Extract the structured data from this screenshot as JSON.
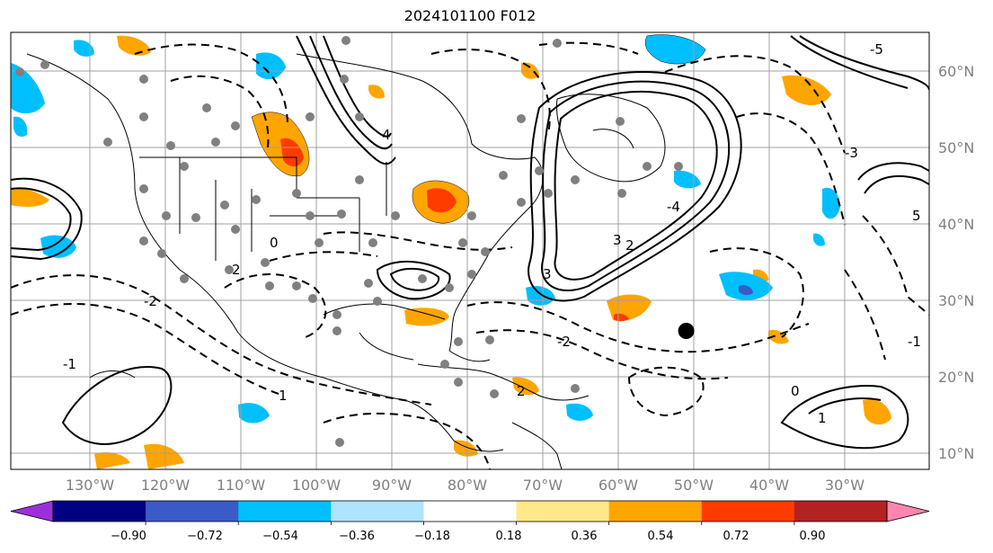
{
  "title": "2024101100 F012",
  "lon_labels": [
    "130°W",
    "120°W",
    "110°W",
    "100°W",
    "90°W",
    "80°W",
    "70°W",
    "60°W",
    "50°W",
    "40°W",
    "30°W"
  ],
  "lat_labels": [
    "60°N",
    "50°N",
    "40°N",
    "30°N",
    "20°N",
    "10°N"
  ],
  "colorbar": {
    "labels": [
      "−0.90",
      "−0.72",
      "−0.54",
      "−0.36",
      "−0.18",
      "0.18",
      "0.36",
      "0.54",
      "0.72",
      "0.90"
    ],
    "colors": [
      "#9b30d9",
      "#000080",
      "#3a5bc7",
      "#00bfff",
      "#aee4ff",
      "#ffffff",
      "#ffe88a",
      "#ffa500",
      "#ff3b00",
      "#b22222",
      "#ff85b0"
    ]
  },
  "contour_labels": [
    "4",
    "2",
    "3",
    "3",
    "2",
    "1",
    "0",
    "-1",
    "-2",
    "-3",
    "-4",
    "5",
    "-5",
    "1",
    "0",
    "-2",
    "2",
    "-1"
  ],
  "marker": {
    "label": "",
    "lon": -51,
    "lat": 26
  }
}
